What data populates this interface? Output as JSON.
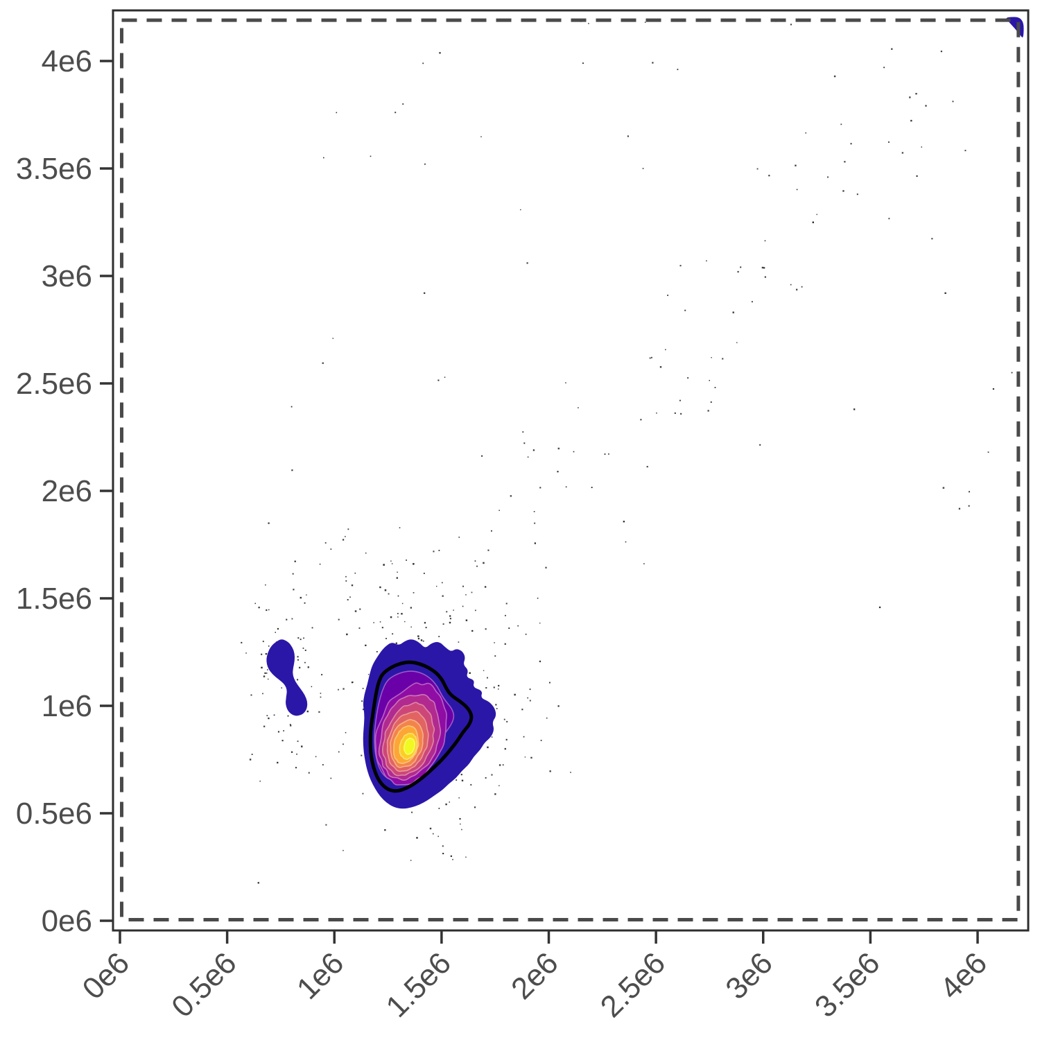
{
  "figure": {
    "background": "#ffffff"
  },
  "chart_data": {
    "type": "scatter",
    "subtype": "2d-density-contours-with-points",
    "title": "",
    "xlabel": "",
    "ylabel": "",
    "axis_unit": "1e6",
    "xlim": [
      -0.03,
      4.24
    ],
    "ylim": [
      -0.045,
      4.235
    ],
    "grid": "off",
    "legend": "none",
    "x_ticks": {
      "values": [
        0,
        0.5,
        1,
        1.5,
        2,
        2.5,
        3,
        3.5,
        4
      ],
      "labels": [
        "0e6",
        "0.5e6",
        "1e6",
        "1.5e6",
        "2e6",
        "2.5e6",
        "3e6",
        "3.5e6",
        "4e6"
      ]
    },
    "y_ticks": {
      "values": [
        0,
        0.5,
        1,
        1.5,
        2,
        2.5,
        3,
        3.5,
        4
      ],
      "labels": [
        "0e6",
        "0.5e6",
        "1e6",
        "1.5e6",
        "2e6",
        "2.5e6",
        "3e6",
        "3.5e6",
        "4e6"
      ]
    },
    "colors": {
      "panel_border": "#2e2e2e",
      "tick": "#333333",
      "tick_label": "#4d4d4d",
      "gate_dash": "#4a4a4a",
      "point": "#2b2b2b",
      "contour_ring": "#000000",
      "density_palette": [
        "#2a17a8",
        "#6a00a8",
        "#8f0da4",
        "#b12a90",
        "#cc4778",
        "#e16462",
        "#f2844b",
        "#fca636",
        "#fcce25",
        "#f0f921"
      ]
    },
    "gate": {
      "x0": 0.008,
      "y0": 0.005,
      "x1": 4.19,
      "y1": 4.19,
      "style": "dashed"
    },
    "density": {
      "main_cluster": {
        "peak": [
          1.35,
          0.815
        ],
        "outer_polygon": [
          [
            1.205,
            1.235
          ],
          [
            1.232,
            1.272
          ],
          [
            1.268,
            1.298
          ],
          [
            1.3,
            1.28
          ],
          [
            1.33,
            1.302
          ],
          [
            1.362,
            1.312
          ],
          [
            1.396,
            1.295
          ],
          [
            1.424,
            1.266
          ],
          [
            1.452,
            1.292
          ],
          [
            1.488,
            1.3
          ],
          [
            1.52,
            1.27
          ],
          [
            1.545,
            1.252
          ],
          [
            1.568,
            1.266
          ],
          [
            1.596,
            1.256
          ],
          [
            1.612,
            1.226
          ],
          [
            1.6,
            1.192
          ],
          [
            1.626,
            1.166
          ],
          [
            1.614,
            1.132
          ],
          [
            1.655,
            1.12
          ],
          [
            1.645,
            1.086
          ],
          [
            1.692,
            1.07
          ],
          [
            1.682,
            1.036
          ],
          [
            1.722,
            1.02
          ],
          [
            1.748,
            0.99
          ],
          [
            1.756,
            0.954
          ],
          [
            1.736,
            0.924
          ],
          [
            1.746,
            0.888
          ],
          [
            1.73,
            0.854
          ],
          [
            1.7,
            0.828
          ],
          [
            1.68,
            0.794
          ],
          [
            1.65,
            0.764
          ],
          [
            1.628,
            0.728
          ],
          [
            1.595,
            0.698
          ],
          [
            1.568,
            0.664
          ],
          [
            1.534,
            0.638
          ],
          [
            1.504,
            0.608
          ],
          [
            1.468,
            0.584
          ],
          [
            1.434,
            0.56
          ],
          [
            1.398,
            0.54
          ],
          [
            1.358,
            0.526
          ],
          [
            1.318,
            0.52
          ],
          [
            1.278,
            0.528
          ],
          [
            1.244,
            0.548
          ],
          [
            1.214,
            0.578
          ],
          [
            1.19,
            0.614
          ],
          [
            1.169,
            0.654
          ],
          [
            1.154,
            0.696
          ],
          [
            1.144,
            0.74
          ],
          [
            1.137,
            0.785
          ],
          [
            1.134,
            0.83
          ],
          [
            1.135,
            0.876
          ],
          [
            1.139,
            0.92
          ],
          [
            1.14,
            0.964
          ],
          [
            1.133,
            1.008
          ],
          [
            1.14,
            1.054
          ],
          [
            1.154,
            1.1
          ],
          [
            1.164,
            1.146
          ],
          [
            1.178,
            1.192
          ]
        ],
        "level2_polygon": [
          [
            1.245,
            1.118
          ],
          [
            1.285,
            1.145
          ],
          [
            1.33,
            1.16
          ],
          [
            1.375,
            1.162
          ],
          [
            1.418,
            1.148
          ],
          [
            1.455,
            1.122
          ],
          [
            1.482,
            1.088
          ],
          [
            1.5,
            1.05
          ],
          [
            1.522,
            1.018
          ],
          [
            1.548,
            0.988
          ],
          [
            1.56,
            0.95
          ],
          [
            1.545,
            0.912
          ],
          [
            1.518,
            0.875
          ],
          [
            1.492,
            0.835
          ],
          [
            1.462,
            0.792
          ],
          [
            1.425,
            0.748
          ],
          [
            1.385,
            0.708
          ],
          [
            1.343,
            0.675
          ],
          [
            1.3,
            0.655
          ],
          [
            1.26,
            0.655
          ],
          [
            1.228,
            0.678
          ],
          [
            1.207,
            0.715
          ],
          [
            1.195,
            0.758
          ],
          [
            1.188,
            0.805
          ],
          [
            1.187,
            0.855
          ],
          [
            1.19,
            0.905
          ],
          [
            1.197,
            0.958
          ],
          [
            1.207,
            1.012
          ],
          [
            1.222,
            1.068
          ]
        ],
        "inner_levels": [
          {
            "cx": 1.36,
            "cy": 0.87,
            "rx": 0.158,
            "ry": 0.24,
            "rot": -18
          },
          {
            "cx": 1.352,
            "cy": 0.856,
            "rx": 0.133,
            "ry": 0.205,
            "rot": -17
          },
          {
            "cx": 1.346,
            "cy": 0.844,
            "rx": 0.111,
            "ry": 0.172,
            "rot": -17
          },
          {
            "cx": 1.341,
            "cy": 0.833,
            "rx": 0.091,
            "ry": 0.142,
            "rot": -16
          },
          {
            "cx": 1.337,
            "cy": 0.825,
            "rx": 0.073,
            "ry": 0.114,
            "rot": -15
          },
          {
            "cx": 1.334,
            "cy": 0.818,
            "rx": 0.056,
            "ry": 0.088,
            "rot": -14
          },
          {
            "cx": 1.345,
            "cy": 0.812,
            "rx": 0.039,
            "ry": 0.061,
            "rot": -13
          },
          {
            "cx": 1.35,
            "cy": 0.812,
            "rx": 0.024,
            "ry": 0.038,
            "rot": -12
          }
        ],
        "black_ring_polygon": [
          [
            1.225,
            1.15
          ],
          [
            1.265,
            1.18
          ],
          [
            1.31,
            1.198
          ],
          [
            1.355,
            1.205
          ],
          [
            1.4,
            1.195
          ],
          [
            1.44,
            1.178
          ],
          [
            1.478,
            1.152
          ],
          [
            1.505,
            1.118
          ],
          [
            1.522,
            1.08
          ],
          [
            1.545,
            1.048
          ],
          [
            1.585,
            1.022
          ],
          [
            1.623,
            0.99
          ],
          [
            1.643,
            0.952
          ],
          [
            1.63,
            0.912
          ],
          [
            1.6,
            0.878
          ],
          [
            1.576,
            0.84
          ],
          [
            1.545,
            0.8
          ],
          [
            1.51,
            0.758
          ],
          [
            1.47,
            0.718
          ],
          [
            1.428,
            0.68
          ],
          [
            1.385,
            0.645
          ],
          [
            1.34,
            0.618
          ],
          [
            1.295,
            0.602
          ],
          [
            1.253,
            0.608
          ],
          [
            1.22,
            0.635
          ],
          [
            1.197,
            0.672
          ],
          [
            1.182,
            0.715
          ],
          [
            1.172,
            0.762
          ],
          [
            1.168,
            0.81
          ],
          [
            1.168,
            0.86
          ],
          [
            1.172,
            0.912
          ],
          [
            1.18,
            0.965
          ],
          [
            1.188,
            1.02
          ],
          [
            1.198,
            1.075
          ],
          [
            1.208,
            1.115
          ]
        ]
      },
      "secondary_cluster_polygon": [
        [
          0.755,
          1.312
        ],
        [
          0.785,
          1.298
        ],
        [
          0.805,
          1.272
        ],
        [
          0.815,
          1.242
        ],
        [
          0.815,
          1.21
        ],
        [
          0.808,
          1.178
        ],
        [
          0.805,
          1.145
        ],
        [
          0.818,
          1.112
        ],
        [
          0.84,
          1.082
        ],
        [
          0.862,
          1.052
        ],
        [
          0.875,
          1.018
        ],
        [
          0.872,
          0.985
        ],
        [
          0.855,
          0.962
        ],
        [
          0.828,
          0.952
        ],
        [
          0.802,
          0.958
        ],
        [
          0.782,
          0.978
        ],
        [
          0.772,
          1.008
        ],
        [
          0.775,
          1.04
        ],
        [
          0.78,
          1.072
        ],
        [
          0.768,
          1.1
        ],
        [
          0.742,
          1.122
        ],
        [
          0.712,
          1.145
        ],
        [
          0.69,
          1.175
        ],
        [
          0.682,
          1.21
        ],
        [
          0.688,
          1.245
        ],
        [
          0.705,
          1.278
        ],
        [
          0.73,
          1.3
        ]
      ],
      "corner_cluster_polygon": [
        [
          4.13,
          4.205
        ],
        [
          4.215,
          4.205
        ],
        [
          4.215,
          4.1
        ],
        [
          4.196,
          4.124
        ],
        [
          4.178,
          4.146
        ],
        [
          4.158,
          4.168
        ],
        [
          4.14,
          4.188
        ]
      ]
    },
    "scatter": {
      "seed": 1337,
      "point_clusters": [
        {
          "name": "main-halo",
          "n": 235,
          "cx": 1.43,
          "cy": 0.93,
          "sx": 0.21,
          "sy": 0.27
        },
        {
          "name": "upper-halo",
          "n": 58,
          "cx": 1.38,
          "cy": 1.52,
          "sx": 0.24,
          "sy": 0.17
        },
        {
          "name": "secondary-halo",
          "n": 88,
          "cx": 0.78,
          "cy": 1.1,
          "sx": 0.09,
          "sy": 0.22
        },
        {
          "name": "right-lobe",
          "n": 18,
          "cx": 1.83,
          "cy": 0.89,
          "sx": 0.11,
          "sy": 0.1
        }
      ],
      "diagonal_trail": {
        "n": 78,
        "x_start": 1.6,
        "x_end": 4.2,
        "y_sd": 0.3,
        "x_sd": 0.1
      },
      "uniform_background": {
        "n": 40,
        "x0": 0.75,
        "x1": 4.22,
        "y0": 1.4,
        "y1": 4.2
      },
      "extra_points": [
        [
          2.45,
          4.18
        ],
        [
          3.13,
          4.17
        ],
        [
          2.15,
          4.185
        ],
        [
          3.06,
          4.185
        ],
        [
          2.16,
          3.99
        ],
        [
          1.01,
          3.76
        ],
        [
          1.32,
          3.8
        ],
        [
          2.37,
          3.65
        ],
        [
          2.44,
          3.5
        ],
        [
          1.9,
          3.06
        ],
        [
          1.42,
          2.92
        ],
        [
          4.16,
          2.55
        ],
        [
          4.19,
          2.28
        ],
        [
          3.96,
          1.93
        ],
        [
          2.48,
          2.62
        ],
        [
          0.95,
          3.55
        ],
        [
          3.44,
          3.38
        ],
        [
          3.85,
          2.92
        ],
        [
          4.05,
          2.18
        ]
      ]
    }
  }
}
